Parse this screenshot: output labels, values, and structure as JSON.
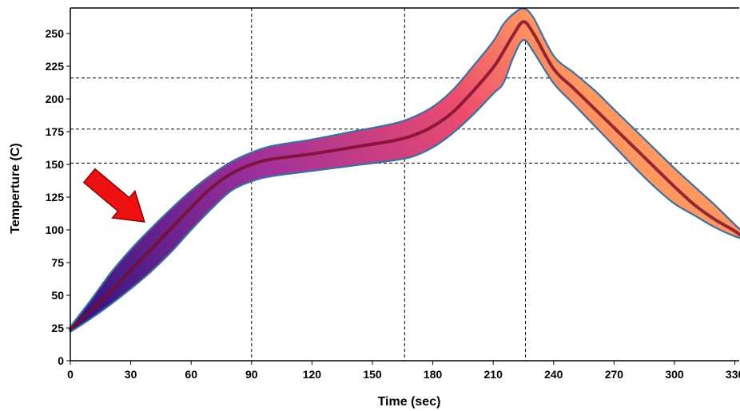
{
  "chart_data": {
    "type": "area",
    "title": "",
    "xlabel": "Time (sec)",
    "ylabel": "Temperture (C)",
    "xlim": [
      0,
      335
    ],
    "ylim": [
      0,
      270
    ],
    "x_ticks": [
      0,
      30,
      60,
      90,
      120,
      150,
      180,
      210,
      240,
      270,
      300,
      330
    ],
    "y_ticks": [
      0,
      25,
      50,
      75,
      100,
      125,
      150,
      175,
      200,
      225,
      250
    ],
    "grid": {
      "vertical_x": [
        90,
        166,
        226
      ],
      "horizontal_y": [
        151,
        177,
        216
      ]
    },
    "series": [
      {
        "x": [
          0,
          10,
          20,
          30,
          40,
          50,
          60,
          70,
          80,
          90,
          100,
          120,
          140,
          160,
          170,
          180,
          190,
          200,
          210,
          215,
          220,
          225,
          230,
          240,
          250,
          260,
          270,
          280,
          290,
          300,
          310,
          320,
          330,
          335
        ],
        "upper": [
          26,
          46,
          67,
          85,
          101,
          116,
          130,
          142,
          152,
          159,
          164,
          169,
          175,
          181,
          186,
          194,
          207,
          225,
          244,
          257,
          265,
          269,
          262,
          233,
          220,
          207,
          192,
          177,
          162,
          147,
          133,
          119,
          104,
          97
        ],
        "center": [
          24,
          38,
          53,
          69,
          85,
          101,
          117,
          132,
          143,
          150,
          154,
          158,
          163,
          168,
          172,
          179,
          190,
          206,
          224,
          236,
          249,
          259,
          250,
          223,
          208,
          193,
          178,
          163,
          148,
          133,
          119,
          108,
          99,
          93
        ],
        "lower": [
          22,
          32,
          43,
          55,
          68,
          83,
          100,
          116,
          130,
          137,
          141,
          145,
          149,
          153,
          156,
          163,
          174,
          188,
          204,
          212,
          232,
          245,
          236,
          212,
          196,
          180,
          164,
          148,
          133,
          120,
          111,
          102,
          95,
          93
        ]
      }
    ],
    "annotations": [
      {
        "type": "arrow",
        "color": "#ee1111",
        "points_to": {
          "x": 40,
          "y": 100
        }
      }
    ],
    "colors": {
      "band_low": "#2a137f",
      "band_mid": "#a0309a",
      "band_high": "#ff9860",
      "center_line": "#7a0a28",
      "band_outline": "#3f6f9e"
    }
  }
}
